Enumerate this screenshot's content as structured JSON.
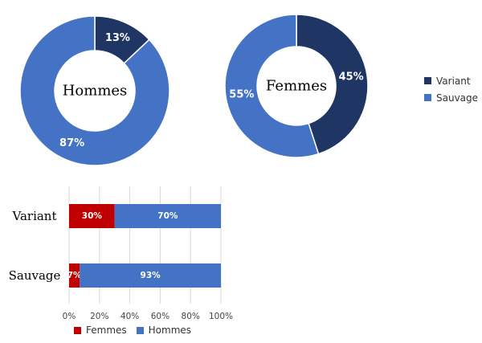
{
  "colors": {
    "variant": "#1f3564",
    "sauvage": "#4472c4",
    "femmes": "#c00000",
    "hommes": "#4472c4"
  },
  "chart_data": [
    {
      "type": "pie",
      "center_label": "Hommes",
      "slices": [
        {
          "label": "Variant",
          "value": 13,
          "display": "13%"
        },
        {
          "label": "Sauvage",
          "value": 87,
          "display": "87%"
        }
      ]
    },
    {
      "type": "pie",
      "center_label": "Femmes",
      "slices": [
        {
          "label": "Variant",
          "value": 45,
          "display": "45%"
        },
        {
          "label": "Sauvage",
          "value": 55,
          "display": "55%"
        }
      ],
      "legend": {
        "position": "right",
        "entries": [
          "Variant",
          "Sauvage"
        ]
      }
    },
    {
      "type": "bar",
      "orientation": "horizontal",
      "stacked": true,
      "categories": [
        "Variant",
        "Sauvage"
      ],
      "series": [
        {
          "name": "Femmes",
          "values": [
            30,
            7
          ],
          "labels": [
            "30%",
            "7%"
          ]
        },
        {
          "name": "Hommes",
          "values": [
            70,
            93
          ],
          "labels": [
            "70%",
            "93%"
          ]
        }
      ],
      "xlim": [
        0,
        100
      ],
      "xticks": [
        "0%",
        "20%",
        "40%",
        "60%",
        "80%",
        "100%"
      ],
      "grid": true,
      "legend": {
        "position": "bottom",
        "entries": [
          "Femmes",
          "Hommes"
        ]
      }
    }
  ]
}
